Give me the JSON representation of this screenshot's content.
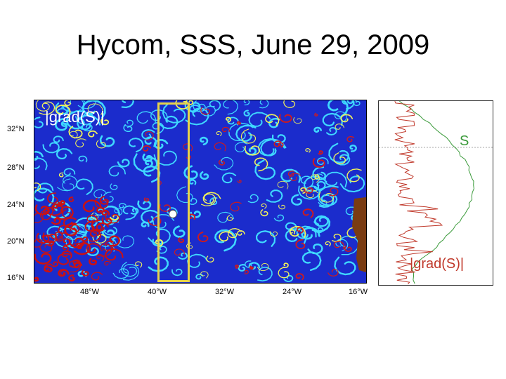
{
  "slide": {
    "title": "Hycom, SSS, June 29, 2009"
  },
  "map": {
    "variable_label": "|grad(S)|",
    "lat_labels": [
      "32°N",
      "28°N",
      "24°N",
      "20°N",
      "16°N"
    ],
    "lon_labels": [
      "48°W",
      "40°W",
      "32°W",
      "24°W",
      "16°W"
    ],
    "colors": {
      "ocean_background": "#1a2fd0",
      "front_cyan": "#33d6ff",
      "front_red": "#cc1111",
      "land": "#7a3c12",
      "highlight_box": "#e6d24a"
    }
  },
  "profile": {
    "salinity_label": "S",
    "gradient_label": "|grad(S)|",
    "colors": {
      "salinity_curve": "#3a9a3a",
      "gradient_curve": "#c0392b"
    }
  }
}
